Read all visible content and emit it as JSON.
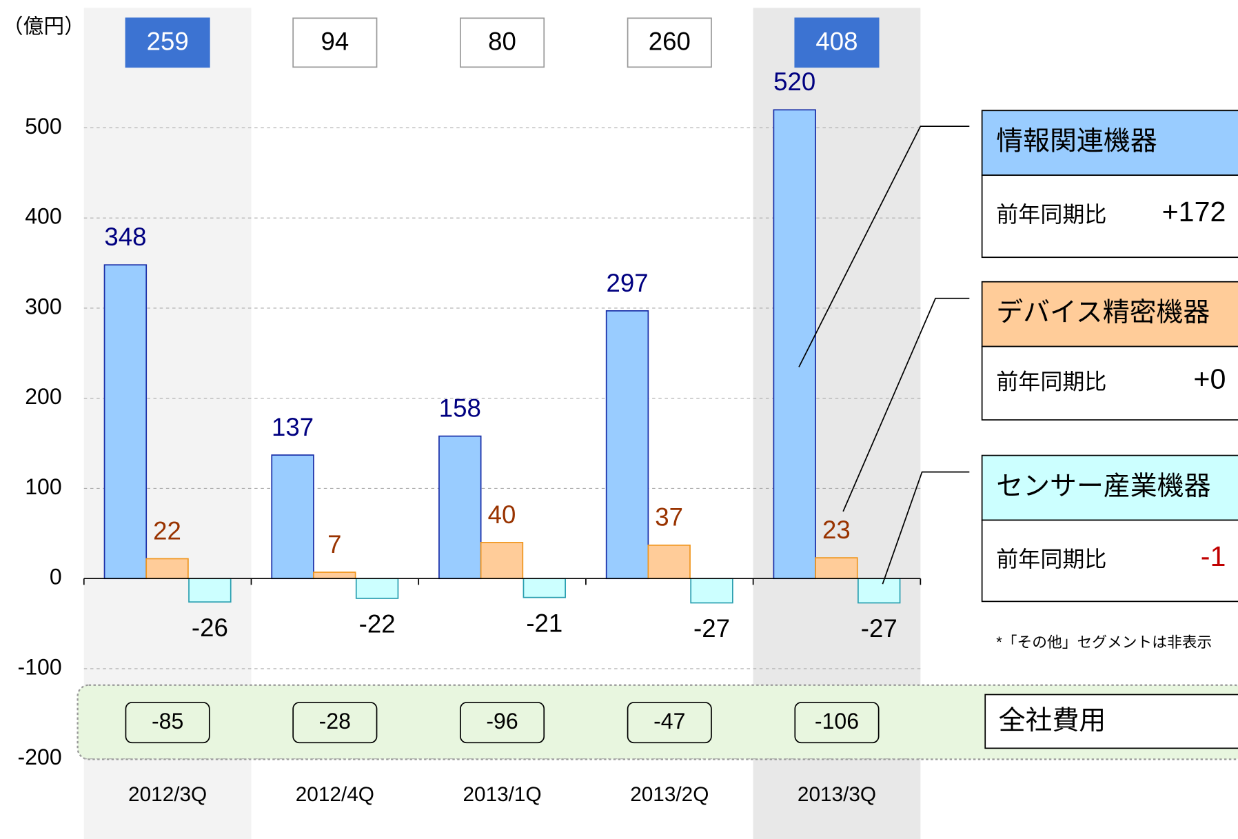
{
  "chart_data": {
    "type": "bar",
    "unit_label": "（億円）",
    "categories": [
      "2012/3Q",
      "2012/4Q",
      "2013/1Q",
      "2013/2Q",
      "2013/3Q"
    ],
    "series": [
      {
        "name": "情報関連機器",
        "color": "#99ccff",
        "stroke": "#1a2fa8",
        "label_color": "#000080",
        "yoy_change": "+172",
        "yoy_color": "#000000",
        "values": [
          348,
          137,
          158,
          297,
          520
        ]
      },
      {
        "name": "デバイス精密機器",
        "color": "#ffcc99",
        "stroke": "#f0961e",
        "label_color": "#993300",
        "yoy_change": "+0",
        "yoy_color": "#000000",
        "values": [
          22,
          7,
          40,
          37,
          23
        ]
      },
      {
        "name": "センサー産業機器",
        "color": "#ccffff",
        "stroke": "#2a9fb0",
        "label_color": "#000000",
        "yoy_change": "-1",
        "yoy_color": "#c00000",
        "values": [
          -26,
          -22,
          -21,
          -27,
          -27
        ]
      }
    ],
    "yoy_label": "前年同期比",
    "totals": [
      259,
      94,
      80,
      260,
      408
    ],
    "highlight": [
      0,
      4
    ],
    "corporate_expenses": {
      "name": "全社費用",
      "values": [
        -85,
        -28,
        -96,
        -47,
        -106
      ]
    },
    "note": "*「その他」セグメントは非表示",
    "ylim": [
      -200,
      600
    ],
    "yticks": [
      -200,
      -100,
      0,
      100,
      200,
      300,
      400,
      500
    ],
    "grid": true
  }
}
